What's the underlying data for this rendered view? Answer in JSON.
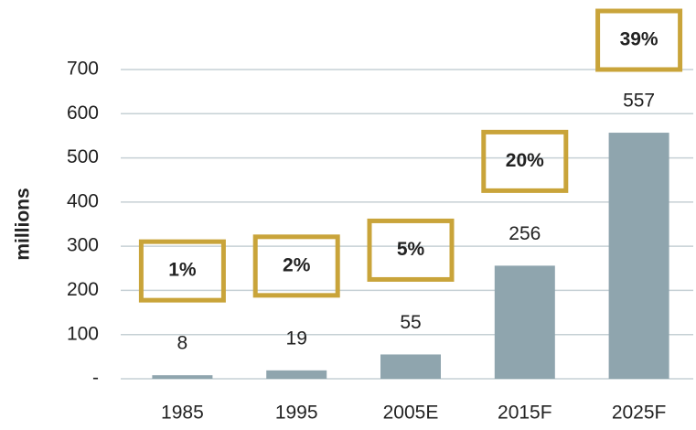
{
  "chart_data": {
    "type": "bar",
    "y_label": "millions",
    "categories": [
      "1985",
      "1995",
      "2005E",
      "2015F",
      "2025F"
    ],
    "values": [
      8,
      19,
      55,
      256,
      557
    ],
    "annotations": [
      "1%",
      "2%",
      "5%",
      "20%",
      "39%"
    ],
    "color": "#8fa5ae",
    "annotation_color": "#c9a43a",
    "ylim": [
      0,
      700
    ],
    "yticks": [
      {
        "value": 0,
        "label": "-"
      },
      100,
      200,
      300,
      400,
      500,
      600,
      700
    ],
    "grid": true
  }
}
